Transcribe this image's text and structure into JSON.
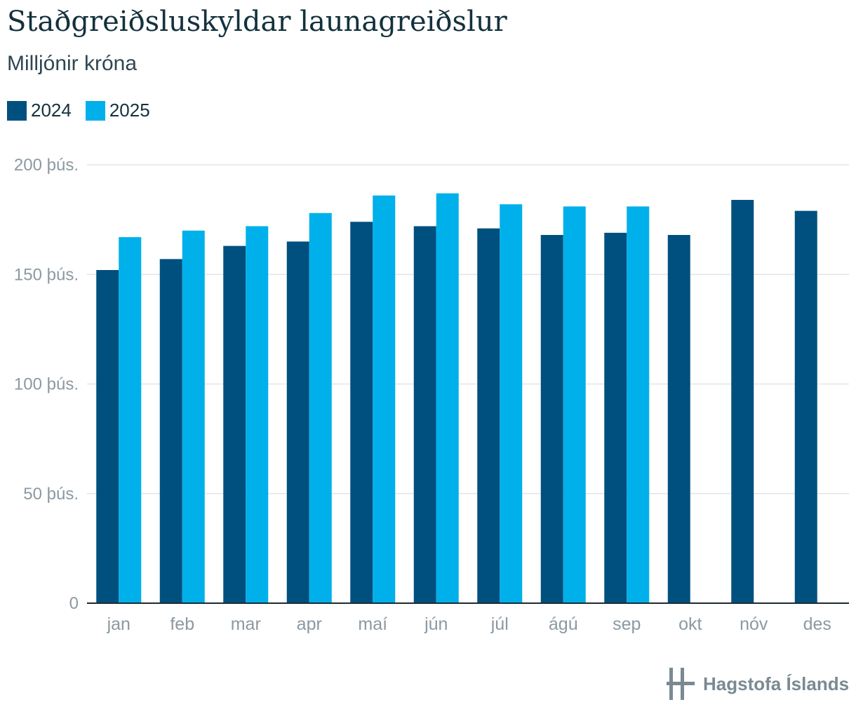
{
  "header": {
    "title": "Staðgreiðsluskyldar launagreiðslur",
    "subtitle": "Milljónir króna"
  },
  "legend": [
    {
      "label": "2024",
      "color": "#00507f"
    },
    {
      "label": "2025",
      "color": "#00b0ea"
    }
  ],
  "brand": {
    "name": "Hagstofa Íslands",
    "logo_icon": "hagstofa-logo-icon"
  },
  "chart_data": {
    "type": "bar",
    "title": "Staðgreiðsluskyldar launagreiðslur",
    "subtitle": "Milljónir króna",
    "categories": [
      "jan",
      "feb",
      "mar",
      "apr",
      "maí",
      "jún",
      "júl",
      "ágú",
      "sep",
      "okt",
      "nóv",
      "des"
    ],
    "series": [
      {
        "name": "2024",
        "color": "#00507f",
        "values": [
          152000,
          157000,
          163000,
          165000,
          174000,
          172000,
          171000,
          168000,
          169000,
          168000,
          184000,
          179000
        ]
      },
      {
        "name": "2025",
        "color": "#00b0ea",
        "values": [
          167000,
          170000,
          172000,
          178000,
          186000,
          187000,
          182000,
          181000,
          181000,
          null,
          null,
          null
        ]
      }
    ],
    "ylim": [
      0,
      200000
    ],
    "yticks": [
      {
        "value": 0,
        "label": "0"
      },
      {
        "value": 50000,
        "label": "50 þús."
      },
      {
        "value": 100000,
        "label": "100 þús."
      },
      {
        "value": 150000,
        "label": "150 þús."
      },
      {
        "value": 200000,
        "label": "200 þús."
      }
    ],
    "grid": true,
    "legend_position": "top-left"
  }
}
